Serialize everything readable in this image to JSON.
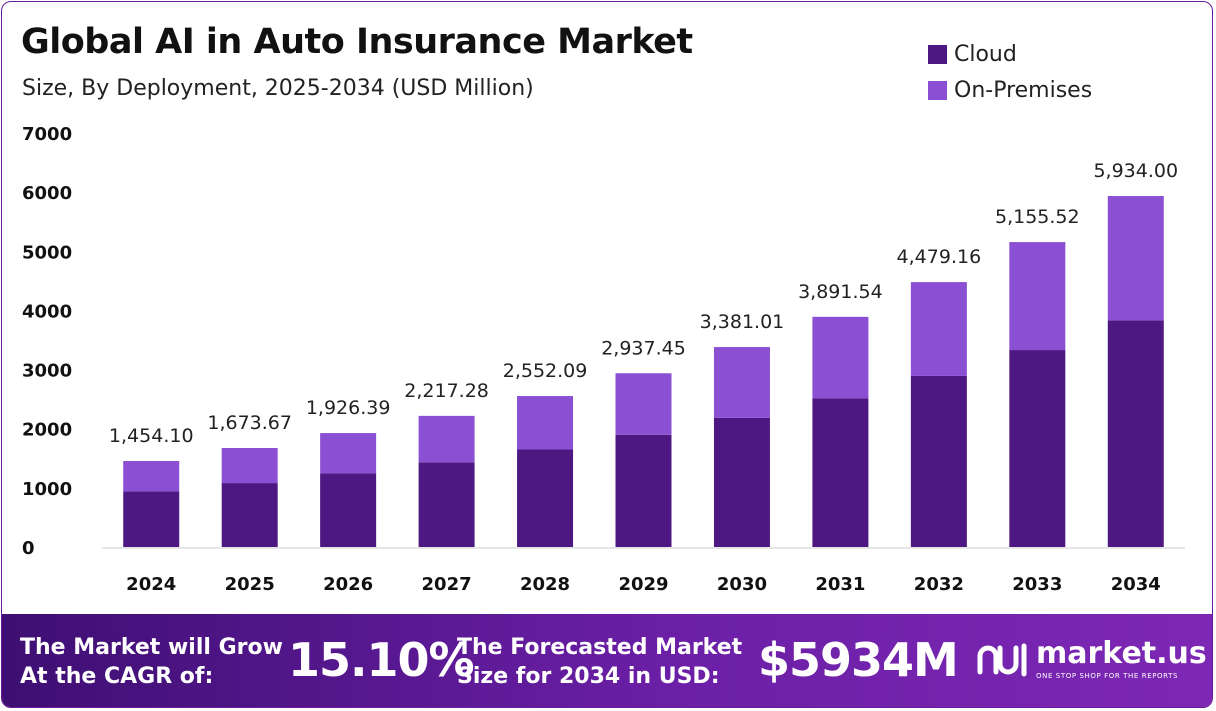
{
  "title": "Global AI in Auto Insurance Market",
  "subtitle": "Size, By Deployment, 2025-2034 (USD Million)",
  "colors": {
    "cloud": "#4e1882",
    "on_premises": "#8a4fd2"
  },
  "chart_data": {
    "type": "bar",
    "stacked": true,
    "categories": [
      "2024",
      "2025",
      "2026",
      "2027",
      "2028",
      "2029",
      "2030",
      "2031",
      "2032",
      "2033",
      "2034"
    ],
    "series": [
      {
        "name": "Cloud",
        "values": [
          940,
          1081,
          1244,
          1432,
          1649,
          1897,
          2183,
          2513,
          2893,
          3330,
          3832
        ]
      },
      {
        "name": "On-Premises",
        "values": [
          514.1,
          592.67,
          682.39,
          785.28,
          903.09,
          1040.45,
          1198.01,
          1378.54,
          1586.16,
          1825.52,
          2102.0
        ]
      }
    ],
    "totals": [
      "1,454.10",
      "1,673.67",
      "1,926.39",
      "2,217.28",
      "2,552.09",
      "2,937.45",
      "3,381.01",
      "3,891.54",
      "4,479.16",
      "5,155.52",
      "5,934.00"
    ],
    "y_ticks": [
      "0",
      "1000",
      "2000",
      "3000",
      "4000",
      "5000",
      "6000",
      "7000"
    ],
    "ylim": [
      0,
      7000
    ],
    "grid": false,
    "legend_position": "top-right"
  },
  "footer": {
    "cagr_text_line1": "The Market will Grow",
    "cagr_text_line2": "At the CAGR of:",
    "cagr_value": "15.10%",
    "forecast_text_line1": "The Forecasted Market",
    "forecast_text_line2": "Size for 2034 in USD:",
    "forecast_value": "$5934M",
    "brand_name": "market.us",
    "brand_tagline": "ONE STOP SHOP FOR THE REPORTS"
  }
}
